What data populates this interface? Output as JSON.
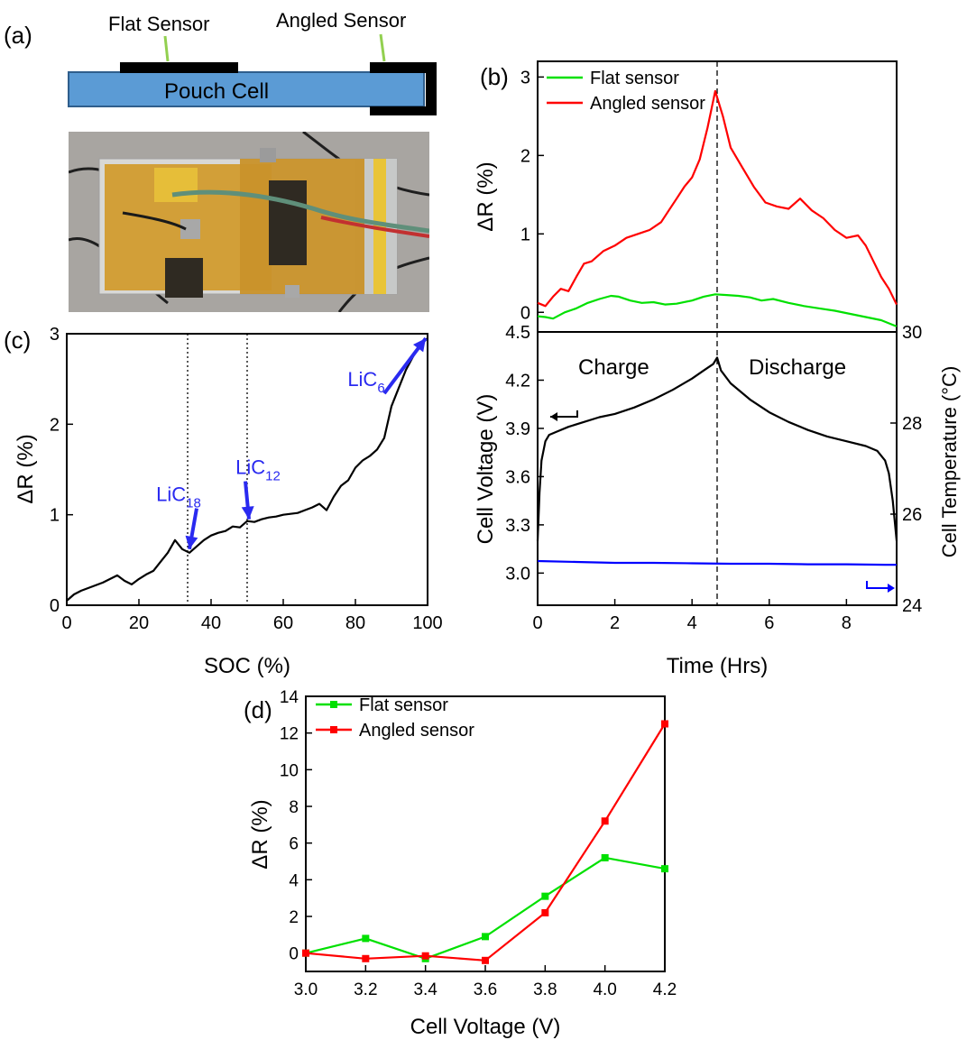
{
  "panel_a": {
    "label": "(a)",
    "flat_sensor_label": "Flat Sensor",
    "angled_sensor_label": "Angled Sensor",
    "cell_label": "Pouch Cell",
    "colors": {
      "cell": "#5b9bd5",
      "sensor": "#000000",
      "lead": "#92d050"
    }
  },
  "colors": {
    "flat": "#00e000",
    "angled": "#ff0000",
    "voltage": "#000000",
    "temperature": "#0000ff",
    "annotation": "#2a2af0"
  },
  "chart_data": [
    {
      "id": "b_top",
      "type": "line",
      "panel_label": "(b)",
      "ylabel": "ΔR (%)",
      "xlim": [
        0,
        9.3
      ],
      "ylim": [
        -0.25,
        3.2
      ],
      "yticks": [
        0,
        1,
        2,
        3
      ],
      "vline_x": 4.65,
      "legend": [
        "Flat sensor",
        "Angled sensor"
      ],
      "series": [
        {
          "name": "Flat sensor",
          "color": "#00e000",
          "x": [
            0,
            0.2,
            0.4,
            0.7,
            1.0,
            1.3,
            1.6,
            1.9,
            2.1,
            2.4,
            2.7,
            3.0,
            3.3,
            3.6,
            4.0,
            4.3,
            4.6,
            4.9,
            5.2,
            5.5,
            5.8,
            6.1,
            6.5,
            6.9,
            7.3,
            7.7,
            8.1,
            8.5,
            8.9,
            9.3
          ],
          "y": [
            -0.05,
            -0.06,
            -0.08,
            0.0,
            0.05,
            0.12,
            0.17,
            0.21,
            0.2,
            0.15,
            0.12,
            0.13,
            0.1,
            0.11,
            0.15,
            0.2,
            0.23,
            0.22,
            0.21,
            0.19,
            0.15,
            0.17,
            0.12,
            0.08,
            0.05,
            0.02,
            -0.02,
            -0.06,
            -0.1,
            -0.18
          ]
        },
        {
          "name": "Angled sensor",
          "color": "#ff0000",
          "x": [
            0,
            0.2,
            0.4,
            0.6,
            0.8,
            1.0,
            1.2,
            1.4,
            1.7,
            2.0,
            2.3,
            2.6,
            2.9,
            3.2,
            3.4,
            3.6,
            3.8,
            4.0,
            4.2,
            4.4,
            4.6,
            4.8,
            5.0,
            5.3,
            5.6,
            5.9,
            6.2,
            6.5,
            6.8,
            7.1,
            7.4,
            7.7,
            8.0,
            8.3,
            8.5,
            8.7,
            8.9,
            9.1,
            9.3
          ],
          "y": [
            0.12,
            0.08,
            0.2,
            0.3,
            0.27,
            0.45,
            0.62,
            0.65,
            0.78,
            0.85,
            0.95,
            1.0,
            1.05,
            1.15,
            1.3,
            1.45,
            1.6,
            1.72,
            1.95,
            2.35,
            2.82,
            2.5,
            2.1,
            1.85,
            1.6,
            1.4,
            1.35,
            1.32,
            1.45,
            1.3,
            1.2,
            1.05,
            0.95,
            0.98,
            0.85,
            0.65,
            0.45,
            0.3,
            0.1
          ]
        }
      ]
    },
    {
      "id": "b_bottom",
      "type": "line",
      "ylabel": "Cell Voltage (V)",
      "y2label": "Cell Temperature (°C)",
      "xlabel": "Time (Hrs)",
      "xlim": [
        0,
        9.3
      ],
      "xticks": [
        0,
        2,
        4,
        6,
        8
      ],
      "ylim": [
        2.8,
        4.5
      ],
      "yticks": [
        3.0,
        3.3,
        3.6,
        3.9,
        4.2,
        4.5
      ],
      "y2lim": [
        24,
        30
      ],
      "y2ticks": [
        24,
        26,
        28,
        30
      ],
      "vline_x": 4.65,
      "text_charge": "Charge",
      "text_discharge": "Discharge",
      "series": [
        {
          "name": "Cell Voltage",
          "axis": "left",
          "color": "#000000",
          "x": [
            0,
            0.05,
            0.1,
            0.2,
            0.3,
            0.5,
            0.8,
            1.2,
            1.6,
            2.0,
            2.5,
            3.0,
            3.5,
            4.0,
            4.3,
            4.55,
            4.65,
            4.75,
            5.0,
            5.5,
            6.0,
            6.5,
            7.0,
            7.5,
            8.0,
            8.5,
            8.8,
            9.0,
            9.1,
            9.2,
            9.3
          ],
          "y": [
            3.2,
            3.5,
            3.7,
            3.82,
            3.86,
            3.88,
            3.91,
            3.94,
            3.97,
            3.99,
            4.03,
            4.08,
            4.14,
            4.21,
            4.26,
            4.3,
            4.34,
            4.26,
            4.18,
            4.08,
            4.0,
            3.94,
            3.89,
            3.85,
            3.82,
            3.79,
            3.76,
            3.7,
            3.62,
            3.45,
            3.2
          ]
        },
        {
          "name": "Cell Temperature",
          "axis": "right",
          "color": "#0000ff",
          "x": [
            0,
            1,
            2,
            3,
            4,
            5,
            6,
            7,
            8,
            9,
            9.3
          ],
          "y": [
            24.97,
            24.95,
            24.93,
            24.93,
            24.92,
            24.91,
            24.91,
            24.9,
            24.9,
            24.89,
            24.89
          ]
        }
      ]
    },
    {
      "id": "c",
      "type": "line",
      "panel_label": "(c)",
      "xlabel": "SOC (%)",
      "ylabel": "ΔR (%)",
      "xlim": [
        0,
        100
      ],
      "xticks": [
        0,
        20,
        40,
        60,
        80,
        100
      ],
      "ylim": [
        0,
        3
      ],
      "yticks": [
        0,
        1,
        2,
        3
      ],
      "vlines_x": [
        33.5,
        50
      ],
      "annotations": [
        {
          "base": "LiC",
          "sub": "18",
          "x": 31,
          "y": 1.15,
          "tip_x": 34,
          "tip_y": 0.62
        },
        {
          "base": "LiC",
          "sub": "12",
          "x": 53,
          "y": 1.45,
          "tip_x": 50.5,
          "tip_y": 0.95
        },
        {
          "base": "LiC",
          "sub": "6",
          "x": 83,
          "y": 2.42,
          "tip_x": 99.5,
          "tip_y": 2.95
        }
      ],
      "series": [
        {
          "name": "ΔR",
          "color": "#000000",
          "x": [
            0,
            2,
            4,
            6,
            8,
            10,
            12,
            14,
            16,
            18,
            20,
            22,
            24,
            26,
            28,
            30,
            32,
            34,
            36,
            38,
            40,
            42,
            44,
            46,
            48,
            50,
            52,
            54,
            56,
            58,
            60,
            62,
            64,
            66,
            68,
            70,
            72,
            74,
            76,
            78,
            80,
            82,
            84,
            86,
            88,
            90,
            92,
            94,
            96,
            98,
            100
          ],
          "y": [
            0.05,
            0.12,
            0.16,
            0.19,
            0.22,
            0.25,
            0.29,
            0.33,
            0.27,
            0.23,
            0.29,
            0.34,
            0.38,
            0.48,
            0.58,
            0.72,
            0.62,
            0.58,
            0.65,
            0.72,
            0.77,
            0.8,
            0.82,
            0.87,
            0.86,
            0.93,
            0.92,
            0.95,
            0.97,
            0.98,
            1.0,
            1.01,
            1.02,
            1.05,
            1.08,
            1.12,
            1.05,
            1.2,
            1.32,
            1.38,
            1.52,
            1.6,
            1.65,
            1.72,
            1.85,
            2.2,
            2.4,
            2.6,
            2.75,
            2.88,
            2.95
          ]
        }
      ]
    },
    {
      "id": "d",
      "type": "line",
      "panel_label": "(d)",
      "xlabel": "Cell Voltage (V)",
      "ylabel": "ΔR (%)",
      "xlim": [
        3.0,
        4.2
      ],
      "xticks": [
        3.0,
        3.2,
        3.4,
        3.6,
        3.8,
        4.0,
        4.2
      ],
      "ylim": [
        -1,
        14
      ],
      "yticks": [
        0,
        2,
        4,
        6,
        8,
        10,
        12,
        14
      ],
      "legend": [
        "Flat sensor",
        "Angled sensor"
      ],
      "series": [
        {
          "name": "Flat sensor",
          "color": "#00e000",
          "x": [
            3.0,
            3.2,
            3.4,
            3.6,
            3.8,
            4.0,
            4.2
          ],
          "y": [
            0.0,
            0.8,
            -0.3,
            0.9,
            3.1,
            5.2,
            4.6
          ]
        },
        {
          "name": "Angled sensor",
          "color": "#ff0000",
          "x": [
            3.0,
            3.2,
            3.4,
            3.6,
            3.8,
            4.0,
            4.2
          ],
          "y": [
            0.0,
            -0.3,
            -0.15,
            -0.4,
            2.2,
            7.2,
            12.5
          ]
        }
      ]
    }
  ]
}
